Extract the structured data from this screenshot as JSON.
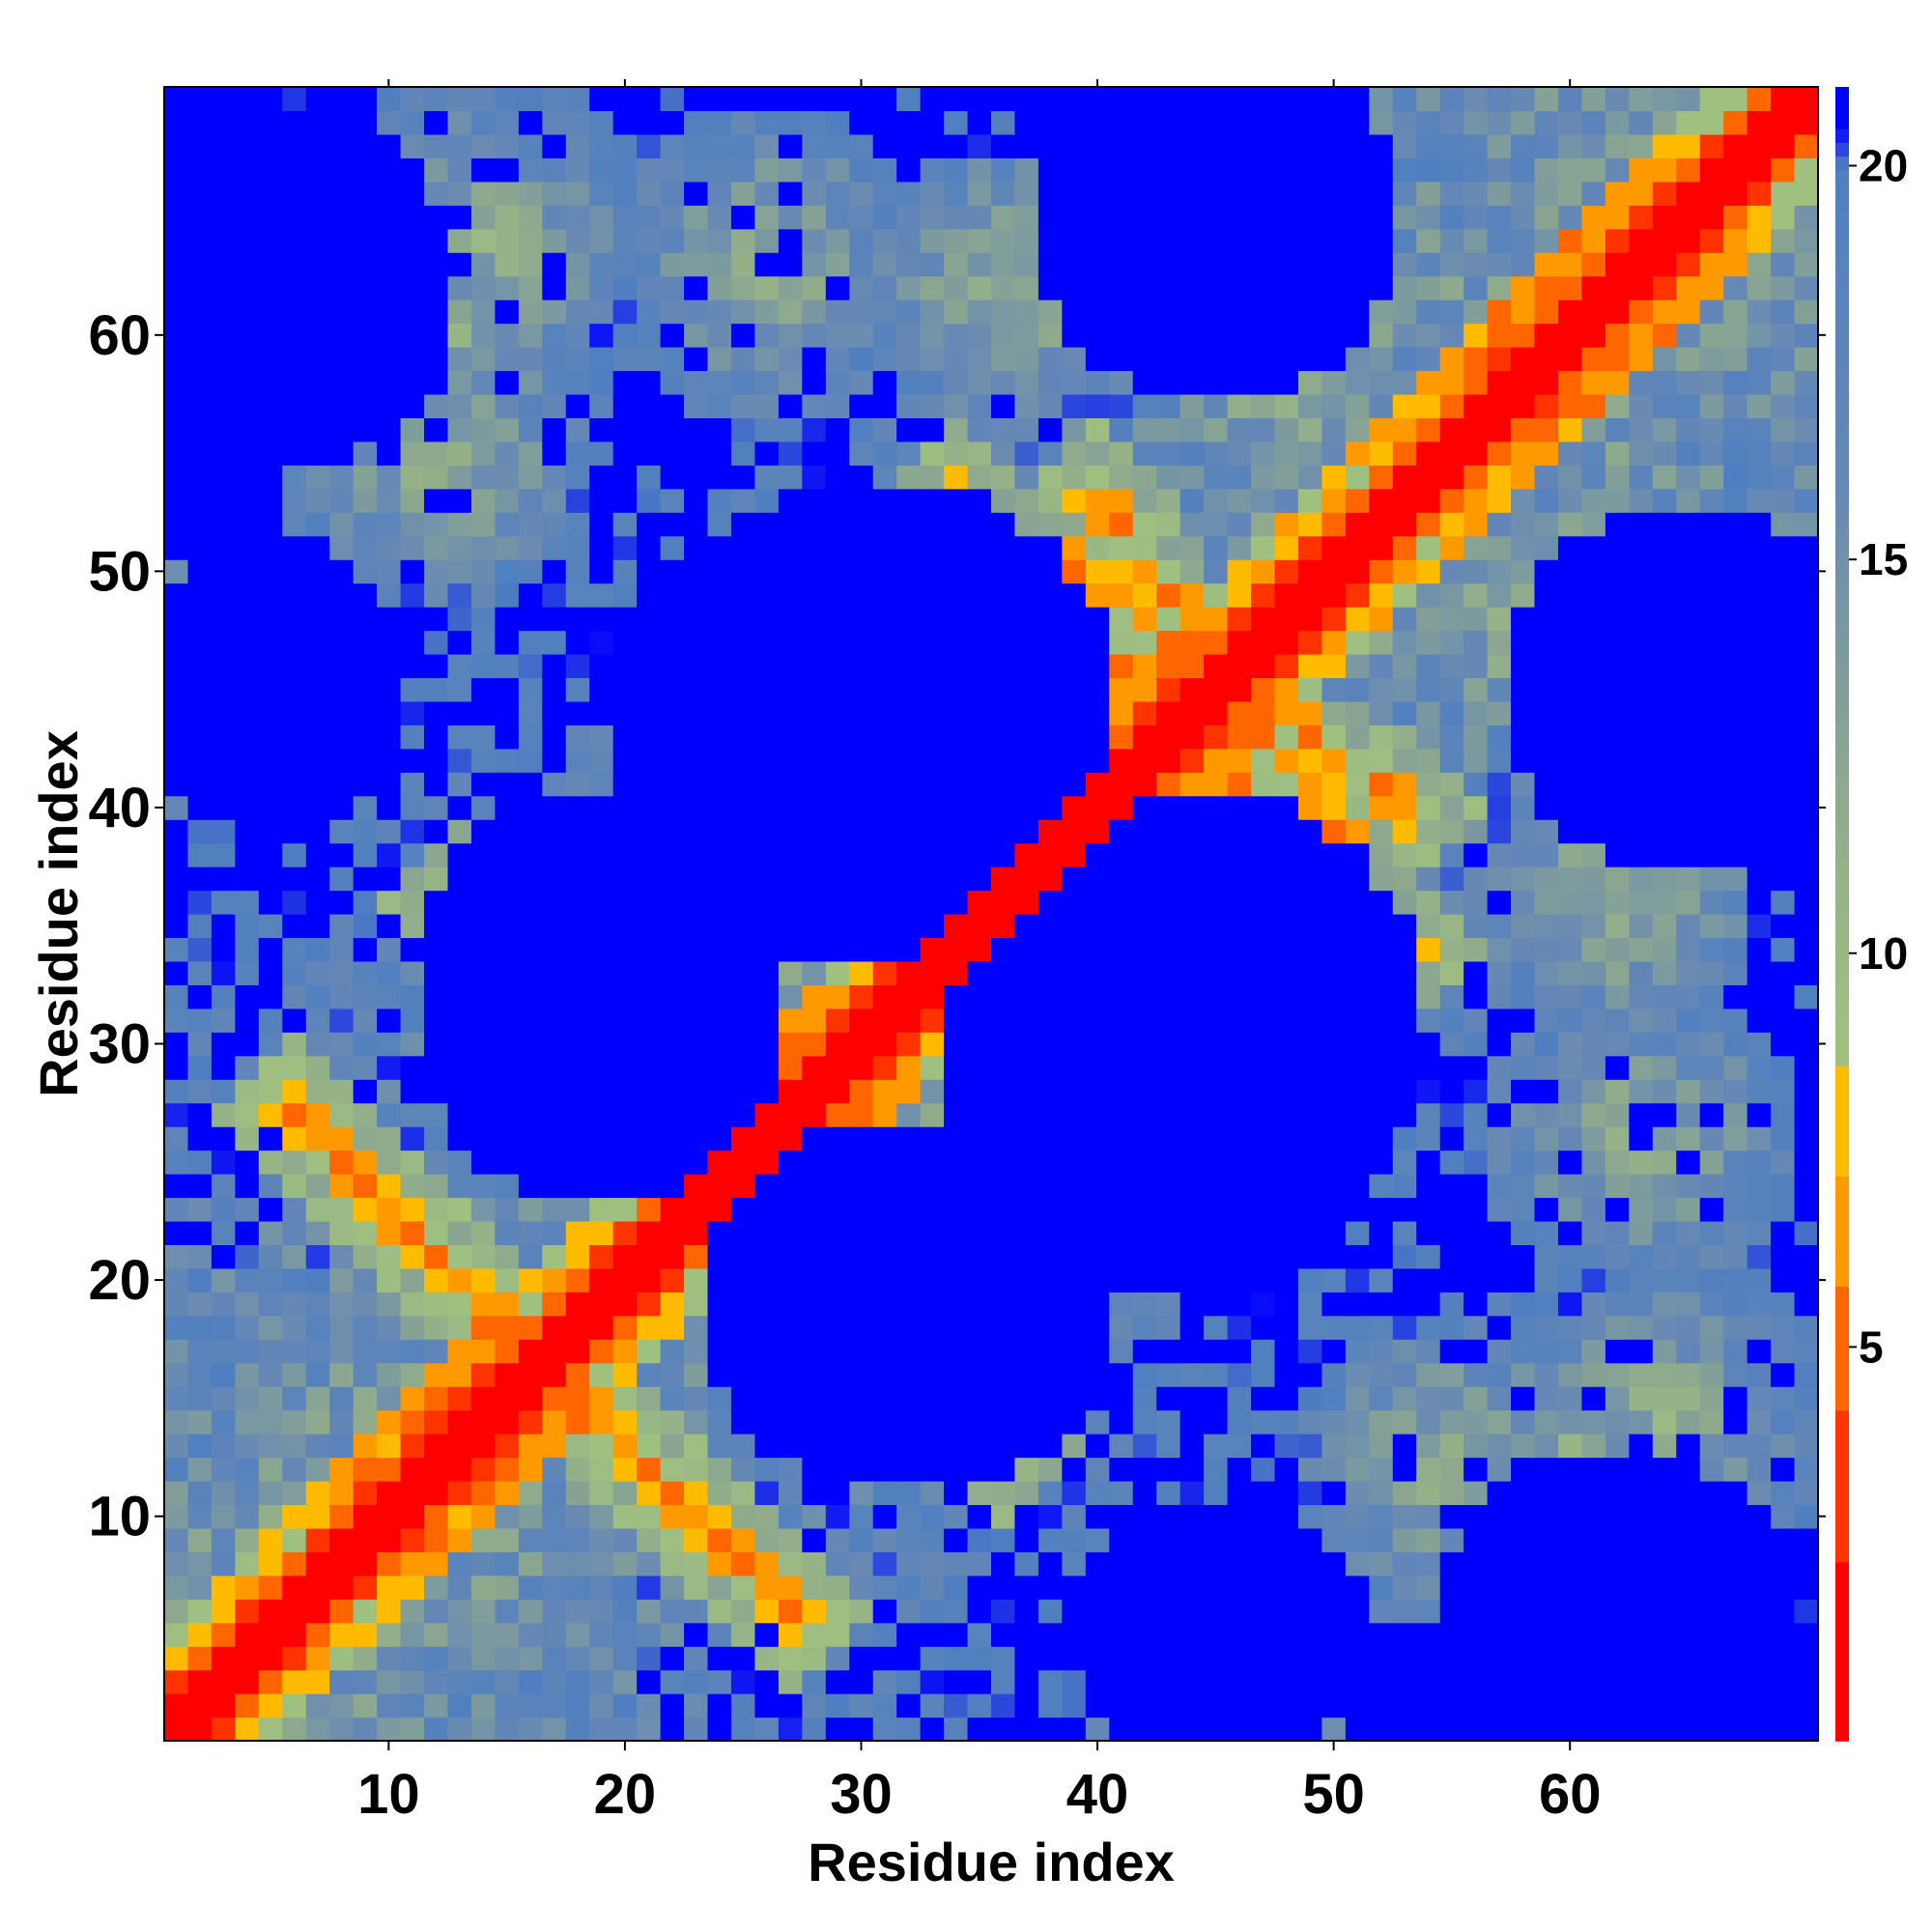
{
  "chart_data": {
    "type": "heatmap",
    "title": "",
    "xlabel": "Residue index",
    "ylabel": "Residue index",
    "n": 70,
    "xlim": [
      0.5,
      70.5
    ],
    "ylim": [
      0.5,
      70.5
    ],
    "x_ticks": [
      10,
      20,
      30,
      40,
      50,
      60
    ],
    "y_ticks": [
      10,
      20,
      30,
      40,
      50,
      60
    ],
    "colorbar": {
      "range": [
        0,
        21
      ],
      "ticks": [
        5,
        10,
        15,
        20
      ],
      "stops": [
        {
          "value": 1.0,
          "color": "#ff0000"
        },
        {
          "value": 3.5,
          "color": "#ff3300"
        },
        {
          "value": 5.0,
          "color": "#ff6600"
        },
        {
          "value": 6.5,
          "color": "#ff9900"
        },
        {
          "value": 8.0,
          "color": "#ffbb00"
        },
        {
          "value": 9.0,
          "color": "#a0c080"
        },
        {
          "value": 12.0,
          "color": "#8faa8c"
        },
        {
          "value": 16.0,
          "color": "#6688b5"
        },
        {
          "value": 20.0,
          "color": "#4f7fc0"
        },
        {
          "value": 20.5,
          "color": "#0000ff"
        }
      ]
    },
    "colors": {
      "near": "#ff0000",
      "contact": "#ff9900",
      "mid": "#9ab888",
      "far": "#5a88c0",
      "cutoff": "#0000ff"
    },
    "structure": {
      "helices": [
        [
          8,
          18
        ],
        [
          22,
          32
        ],
        [
          38,
          48
        ],
        [
          55,
          67
        ]
      ],
      "sheet_pairs": [
        [
          [
            6,
            15
          ],
          [
            27,
            18
          ]
        ],
        [
          [
            13,
            24
          ],
          [
            36,
            26
          ]
        ],
        [
          [
            34,
            45
          ],
          [
            53,
            42
          ]
        ],
        [
          [
            40,
            50
          ],
          [
            53,
            39
          ]
        ]
      ],
      "contact_patches": [
        [
          3,
          45,
          6
        ],
        [
          14,
          64,
          8
        ],
        [
          26,
          63,
          7
        ],
        [
          12,
          55,
          7
        ],
        [
          60,
          12,
          8
        ],
        [
          48,
          58,
          6
        ],
        [
          62,
          36,
          6
        ]
      ],
      "far_patches": [
        [
          29,
          43,
          5
        ],
        [
          44,
          31,
          5
        ],
        [
          33,
          19,
          4
        ],
        [
          19,
          31,
          4
        ],
        [
          5,
          62,
          4
        ],
        [
          62,
          5,
          4
        ],
        [
          45,
          66,
          3
        ],
        [
          66,
          45,
          3
        ],
        [
          5,
          45,
          3
        ],
        [
          65,
          45,
          4
        ],
        [
          45,
          5,
          3
        ],
        [
          45,
          65,
          4
        ]
      ],
      "noise_seed": 17
    }
  }
}
